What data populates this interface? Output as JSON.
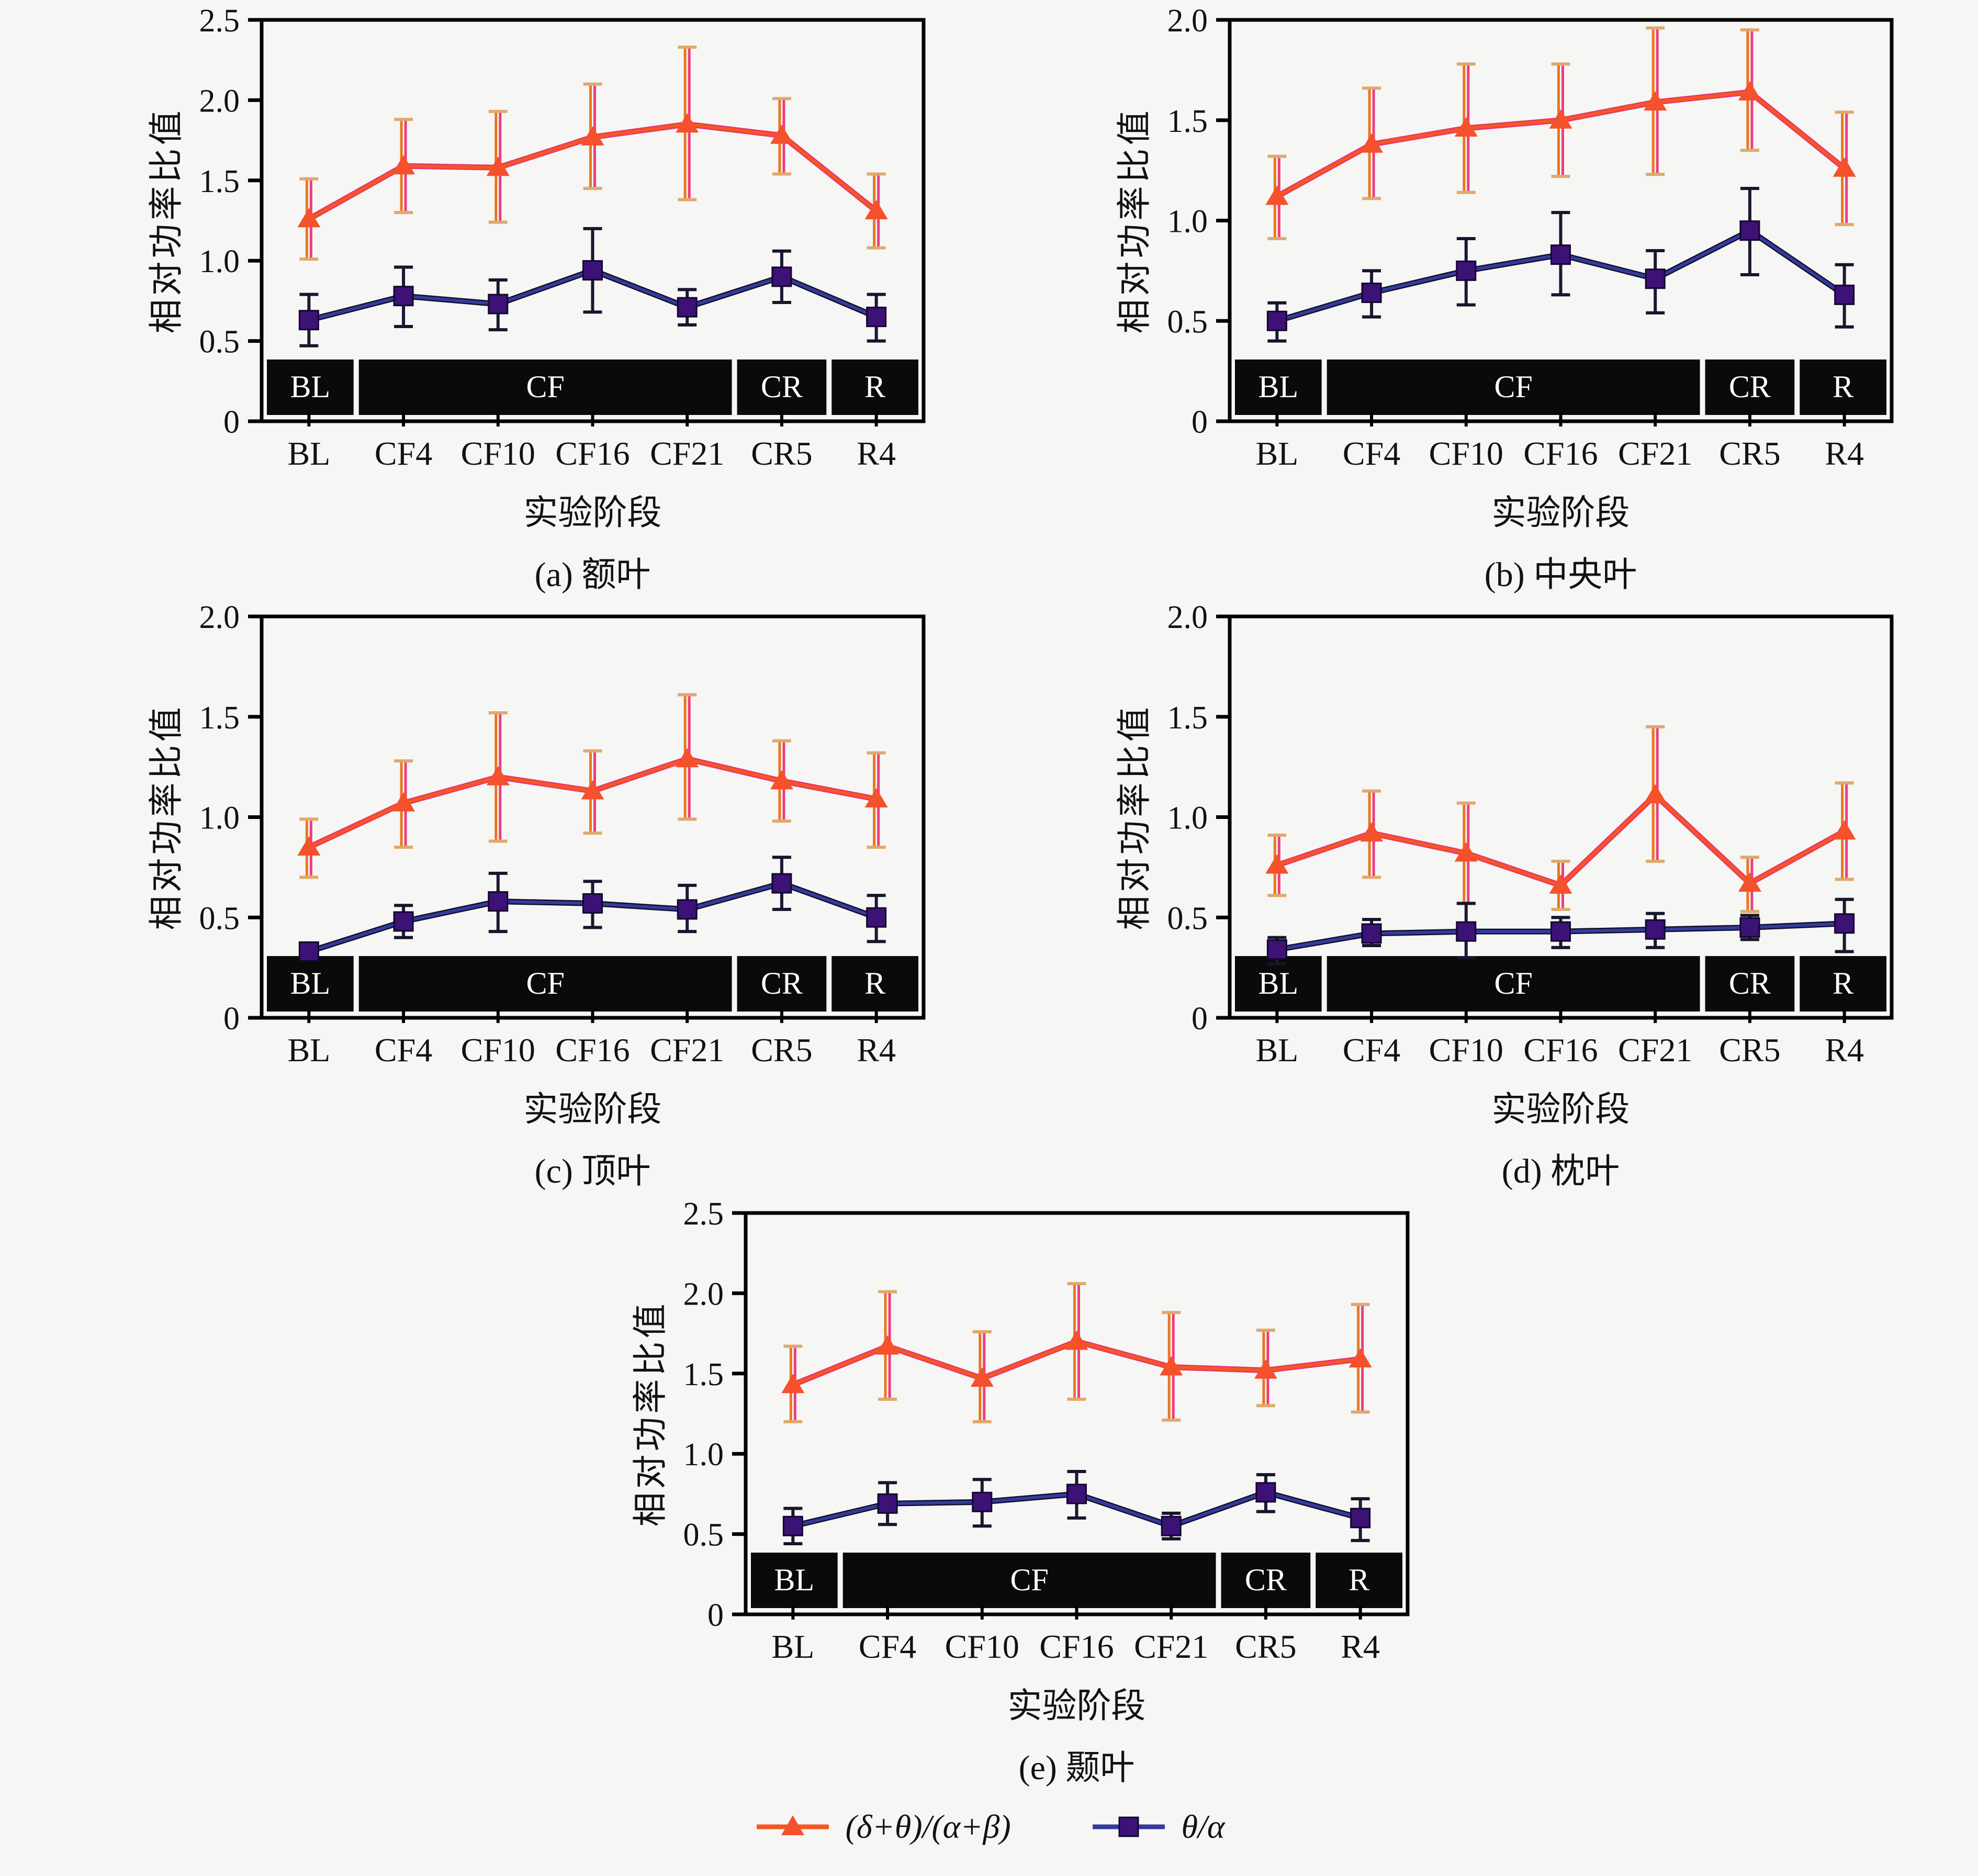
{
  "figure_title": "",
  "colors": {
    "background": "#f6f6f5",
    "frame": "#000000",
    "text": "#111111",
    "band_fill": "#0a0a0a",
    "band_text": "#ffffff",
    "series1_line": "#f5581f",
    "series1_line_under": "#e8356f",
    "series1_marker": "#f4512c",
    "series1_err_a": "#e8771f",
    "series1_err_b": "#ef3d7d",
    "series1_cap": "#dfa96e",
    "series2_line": "#343b9e",
    "series2_line_under": "#10102a",
    "series2_marker": "#3c1277",
    "series2_marker_stroke": "#14062e",
    "series2_err": "#191931",
    "series2_cap": "#15152b"
  },
  "chart_data": {
    "type": "line",
    "categories": [
      "BL",
      "CF4",
      "CF10",
      "CF16",
      "CF21",
      "CR5",
      "R4"
    ],
    "xlabel": "实验阶段",
    "ylabel": "相对功率比值",
    "grid": false,
    "stage_bands": [
      {
        "label": "BL",
        "from": 0,
        "to": 1
      },
      {
        "label": "CF",
        "from": 1,
        "to": 5
      },
      {
        "label": "CR",
        "from": 5,
        "to": 6
      },
      {
        "label": "R",
        "from": 6,
        "to": 7
      }
    ],
    "legend": {
      "position": "bottom-center",
      "items": [
        {
          "label": "(δ+θ)/(α+β)",
          "marker": "triangle",
          "color": "#f4512c"
        },
        {
          "label": "θ/α",
          "marker": "square",
          "color": "#3c1277"
        }
      ]
    },
    "charts": [
      {
        "id": "a",
        "caption": "(a) 额叶",
        "region": "额叶",
        "ylim": [
          0,
          2.5
        ],
        "yticks": [
          "0",
          "0.5",
          "1.0",
          "1.5",
          "2.0",
          "2.5"
        ],
        "series": [
          {
            "name": "(δ+θ)/(α+β)",
            "values": [
              1.26,
              1.59,
              1.58,
              1.77,
              1.85,
              1.78,
              1.31
            ],
            "err_lo": [
              1.01,
              1.3,
              1.24,
              1.45,
              1.38,
              1.54,
              1.08
            ],
            "err_hi": [
              1.51,
              1.88,
              1.93,
              2.1,
              2.33,
              2.01,
              1.54
            ]
          },
          {
            "name": "θ/α",
            "values": [
              0.63,
              0.78,
              0.73,
              0.94,
              0.71,
              0.9,
              0.65
            ],
            "err_lo": [
              0.47,
              0.59,
              0.57,
              0.68,
              0.6,
              0.74,
              0.5
            ],
            "err_hi": [
              0.79,
              0.96,
              0.88,
              1.2,
              0.82,
              1.06,
              0.79
            ]
          }
        ]
      },
      {
        "id": "b",
        "caption": "(b) 中央叶",
        "region": "中央叶",
        "ylim": [
          0,
          2.0
        ],
        "yticks": [
          "0",
          "0.5",
          "1.0",
          "1.5",
          "2.0"
        ],
        "series": [
          {
            "name": "(δ+θ)/(α+β)",
            "values": [
              1.12,
              1.38,
              1.46,
              1.5,
              1.59,
              1.64,
              1.26
            ],
            "err_lo": [
              0.91,
              1.11,
              1.14,
              1.22,
              1.23,
              1.35,
              0.98
            ],
            "err_hi": [
              1.32,
              1.66,
              1.78,
              1.78,
              1.96,
              1.95,
              1.54
            ]
          },
          {
            "name": "θ/α",
            "values": [
              0.5,
              0.64,
              0.75,
              0.83,
              0.71,
              0.95,
              0.63
            ],
            "err_lo": [
              0.4,
              0.52,
              0.58,
              0.63,
              0.54,
              0.73,
              0.47
            ],
            "err_hi": [
              0.59,
              0.75,
              0.91,
              1.04,
              0.85,
              1.16,
              0.78
            ]
          }
        ]
      },
      {
        "id": "c",
        "caption": "(c) 顶叶",
        "region": "顶叶",
        "ylim": [
          0,
          2.0
        ],
        "yticks": [
          "0",
          "0.5",
          "1.0",
          "1.5",
          "2.0"
        ],
        "series": [
          {
            "name": "(δ+θ)/(α+β)",
            "values": [
              0.85,
              1.07,
              1.2,
              1.13,
              1.29,
              1.18,
              1.09
            ],
            "err_lo": [
              0.7,
              0.85,
              0.88,
              0.92,
              0.99,
              0.98,
              0.85
            ],
            "err_hi": [
              0.99,
              1.28,
              1.52,
              1.33,
              1.61,
              1.38,
              1.32
            ]
          },
          {
            "name": "θ/α",
            "values": [
              0.33,
              0.48,
              0.58,
              0.57,
              0.54,
              0.67,
              0.5
            ],
            "err_lo": [
              0.29,
              0.4,
              0.43,
              0.45,
              0.43,
              0.54,
              0.38
            ],
            "err_hi": [
              0.37,
              0.56,
              0.72,
              0.68,
              0.66,
              0.8,
              0.61
            ]
          }
        ]
      },
      {
        "id": "d",
        "caption": "(d) 枕叶",
        "region": "枕叶",
        "ylim": [
          0,
          2.0
        ],
        "yticks": [
          "0",
          "0.5",
          "1.0",
          "1.5",
          "2.0"
        ],
        "series": [
          {
            "name": "(δ+θ)/(α+β)",
            "values": [
              0.76,
              0.92,
              0.82,
              0.66,
              1.11,
              0.67,
              0.93
            ],
            "err_lo": [
              0.61,
              0.7,
              0.57,
              0.54,
              0.78,
              0.53,
              0.69
            ],
            "err_hi": [
              0.91,
              1.13,
              1.07,
              0.78,
              1.45,
              0.8,
              1.17
            ]
          },
          {
            "name": "θ/α",
            "values": [
              0.34,
              0.42,
              0.43,
              0.43,
              0.44,
              0.45,
              0.47
            ],
            "err_lo": [
              0.27,
              0.36,
              0.3,
              0.35,
              0.35,
              0.39,
              0.33
            ],
            "err_hi": [
              0.4,
              0.49,
              0.57,
              0.5,
              0.52,
              0.51,
              0.59
            ]
          }
        ]
      },
      {
        "id": "e",
        "caption": "(e) 颞叶",
        "region": "颞叶",
        "ylim": [
          0,
          2.5
        ],
        "yticks": [
          "0",
          "0.5",
          "1.0",
          "1.5",
          "2.0",
          "2.5"
        ],
        "series": [
          {
            "name": "(δ+θ)/(α+β)",
            "values": [
              1.43,
              1.67,
              1.47,
              1.7,
              1.54,
              1.52,
              1.59
            ],
            "err_lo": [
              1.2,
              1.34,
              1.2,
              1.34,
              1.21,
              1.3,
              1.26
            ],
            "err_hi": [
              1.67,
              2.01,
              1.76,
              2.06,
              1.88,
              1.77,
              1.93
            ]
          },
          {
            "name": "θ/α",
            "values": [
              0.55,
              0.69,
              0.7,
              0.75,
              0.55,
              0.76,
              0.6
            ],
            "err_lo": [
              0.44,
              0.56,
              0.55,
              0.6,
              0.47,
              0.64,
              0.46
            ],
            "err_hi": [
              0.66,
              0.82,
              0.84,
              0.89,
              0.63,
              0.87,
              0.72
            ]
          }
        ]
      }
    ]
  }
}
